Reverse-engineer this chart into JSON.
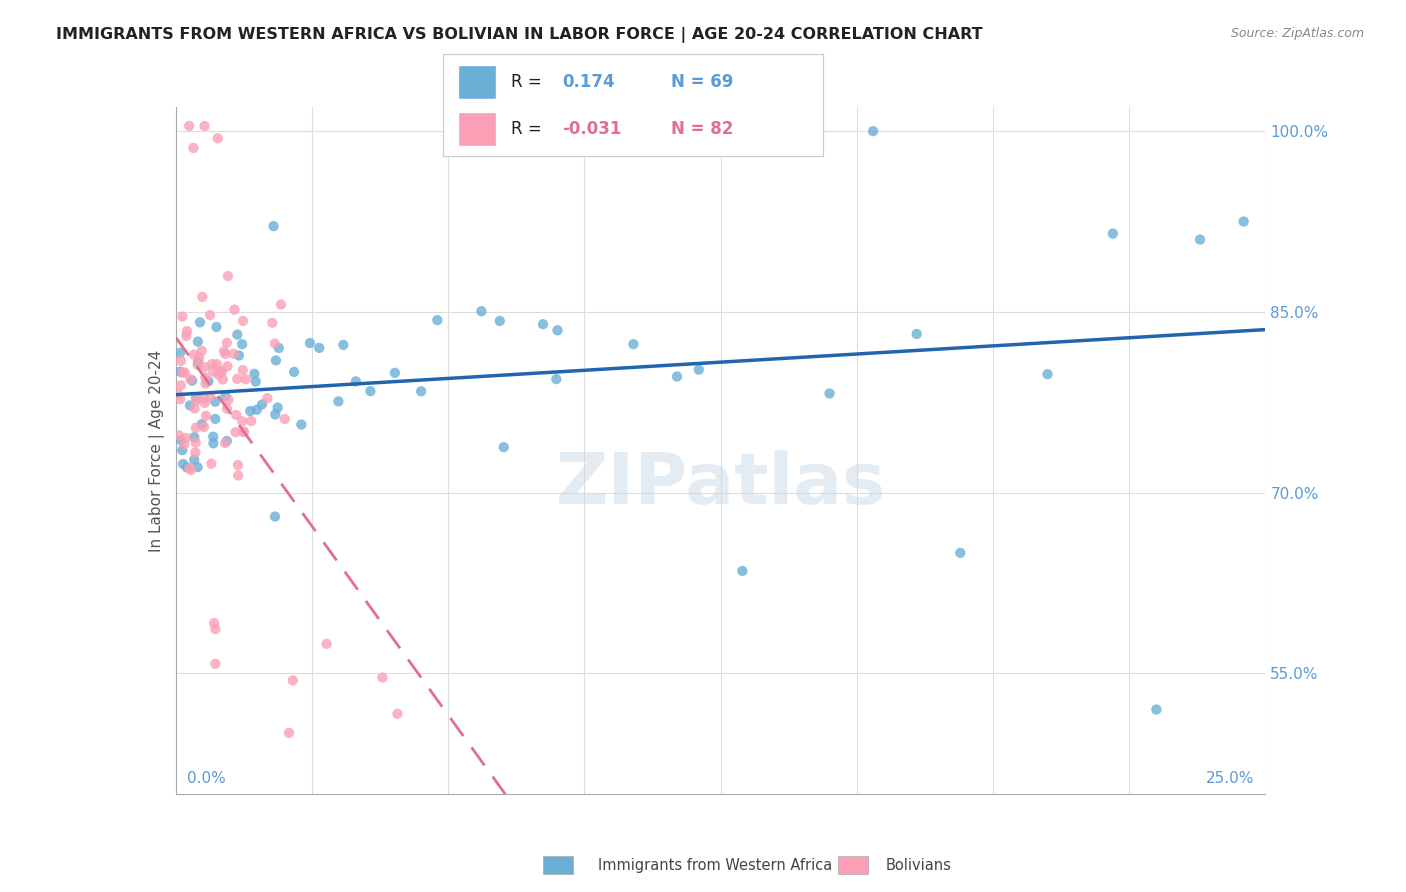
{
  "title": "IMMIGRANTS FROM WESTERN AFRICA VS BOLIVIAN IN LABOR FORCE | AGE 20-24 CORRELATION CHART",
  "source": "Source: ZipAtlas.com",
  "ylabel": "In Labor Force | Age 20-24",
  "ylabel_right_ticks": [
    55.0,
    70.0,
    85.0,
    100.0
  ],
  "ylabel_right_labels": [
    "55.0%",
    "70.0%",
    "85.0%",
    "100.0%"
  ],
  "legend_blue_label": "Immigrants from Western Africa",
  "legend_pink_label": "Bolivians",
  "legend_blue_r_val": "0.174",
  "legend_blue_n": "N = 69",
  "legend_pink_r_val": "-0.031",
  "legend_pink_n": "N = 82",
  "blue_color": "#6baed6",
  "pink_color": "#fa9fb5",
  "blue_line_color": "#2166ac",
  "pink_line_color": "#e07090",
  "watermark": "ZIPatlas",
  "xmin": 0.0,
  "xmax": 25.0,
  "ymin": 45.0,
  "ymax": 102.0,
  "blue_seed": 42,
  "pink_seed": 123,
  "n_blue": 69,
  "n_pink": 82
}
